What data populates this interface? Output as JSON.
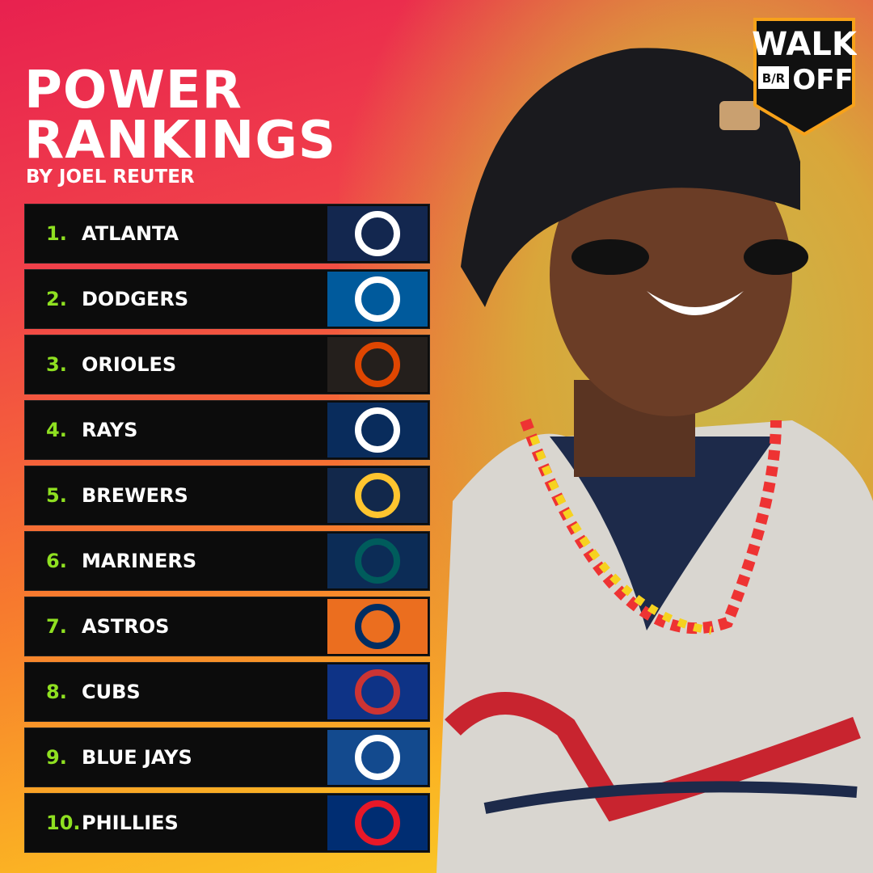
{
  "header": {
    "title_lines": [
      "POWER",
      "RANKINGS"
    ],
    "byline": "BY JOEL REUTER"
  },
  "brand": {
    "top": "WALK",
    "badge": "B/R",
    "bottom": "OFF"
  },
  "rankings": [
    {
      "rank": "1.",
      "team": "ATLANTA"
    },
    {
      "rank": "2.",
      "team": "DODGERS"
    },
    {
      "rank": "3.",
      "team": "ORIOLES"
    },
    {
      "rank": "4.",
      "team": "RAYS"
    },
    {
      "rank": "5.",
      "team": "BREWERS"
    },
    {
      "rank": "6.",
      "team": "MARINERS"
    },
    {
      "rank": "7.",
      "team": "ASTROS"
    },
    {
      "rank": "8.",
      "team": "CUBS"
    },
    {
      "rank": "9.",
      "team": "BLUE JAYS"
    },
    {
      "rank": "10.",
      "team": "PHILLIES"
    }
  ]
}
